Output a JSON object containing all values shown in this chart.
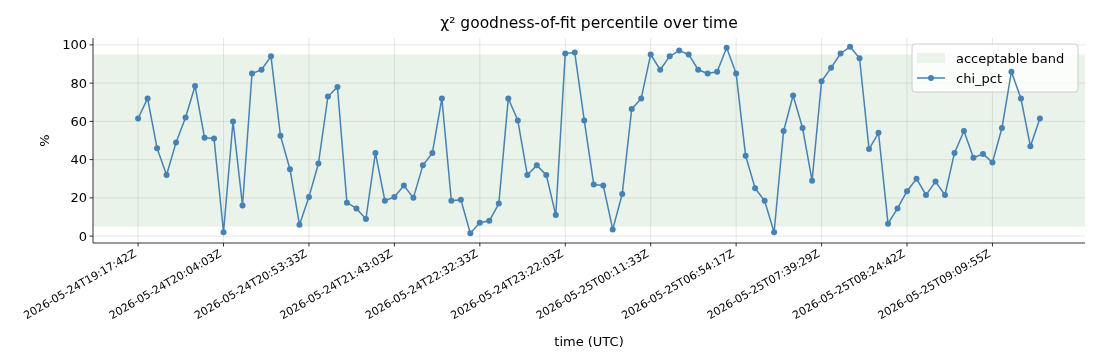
{
  "chart_data": {
    "type": "line",
    "title": "χ² goodness-of-fit percentile over time",
    "xlabel": "time (UTC)",
    "ylabel": "%",
    "categories": [
      "2026-05-24T19:17:42Z",
      null,
      null,
      null,
      null,
      null,
      null,
      null,
      null,
      "2026-05-24T20:04:03Z",
      null,
      null,
      null,
      null,
      null,
      null,
      null,
      null,
      "2026-05-24T20:53:33Z",
      null,
      null,
      null,
      null,
      null,
      null,
      null,
      null,
      "2026-05-24T21:43:03Z",
      null,
      null,
      null,
      null,
      null,
      null,
      null,
      null,
      "2026-05-24T22:32:33Z",
      null,
      null,
      null,
      null,
      null,
      null,
      null,
      null,
      "2026-05-24T23:22:03Z",
      null,
      null,
      null,
      null,
      null,
      null,
      null,
      null,
      "2026-05-25T00:11:33Z",
      null,
      null,
      null,
      null,
      null,
      null,
      null,
      null,
      "2026-05-25T06:54:17Z",
      null,
      null,
      null,
      null,
      null,
      null,
      null,
      null,
      "2026-05-25T07:39:29Z",
      null,
      null,
      null,
      null,
      null,
      null,
      null,
      null,
      "2026-05-25T08:24:42Z",
      null,
      null,
      null,
      null,
      null,
      null,
      null,
      null,
      "2026-05-25T09:09:55Z",
      null,
      null,
      null,
      null,
      null
    ],
    "series": [
      {
        "name": "chi_pct",
        "color": "#4682b4",
        "values": [
          61.5,
          72,
          46,
          32,
          49,
          62,
          78.5,
          51.5,
          51,
          2,
          60,
          16,
          85,
          87,
          94,
          52.5,
          35,
          6,
          20.5,
          38,
          73,
          78,
          17.5,
          14.5,
          9,
          43.5,
          18.5,
          20.5,
          26.5,
          20,
          37,
          43.5,
          72,
          18.5,
          19,
          1.5,
          7,
          8,
          17,
          72,
          60.5,
          32,
          37,
          32,
          11,
          95.5,
          96,
          60.5,
          27,
          26.5,
          3.5,
          22,
          66.5,
          72,
          95,
          87,
          94,
          97,
          95,
          87,
          85,
          86,
          98.5,
          85,
          42,
          25,
          18.5,
          2,
          55,
          73.5,
          56.5,
          29,
          81,
          88,
          95.5,
          99,
          93,
          45.5,
          54,
          6.5,
          14.5,
          23.5,
          30,
          21.5,
          28.5,
          21.5,
          43.5,
          55,
          41,
          43,
          38.5,
          56.5,
          86,
          72,
          47,
          61.5
        ]
      }
    ],
    "bands": [
      {
        "axis": "y",
        "from": 5,
        "to": 95,
        "label": "acceptable band",
        "color": "#e9f3e9"
      }
    ],
    "ylim": [
      -3.6,
      103.6
    ],
    "yticks": [
      0,
      20,
      40,
      60,
      80,
      100
    ],
    "grid": true,
    "legend": "top right",
    "marker": "circle",
    "line_style": "solid"
  }
}
